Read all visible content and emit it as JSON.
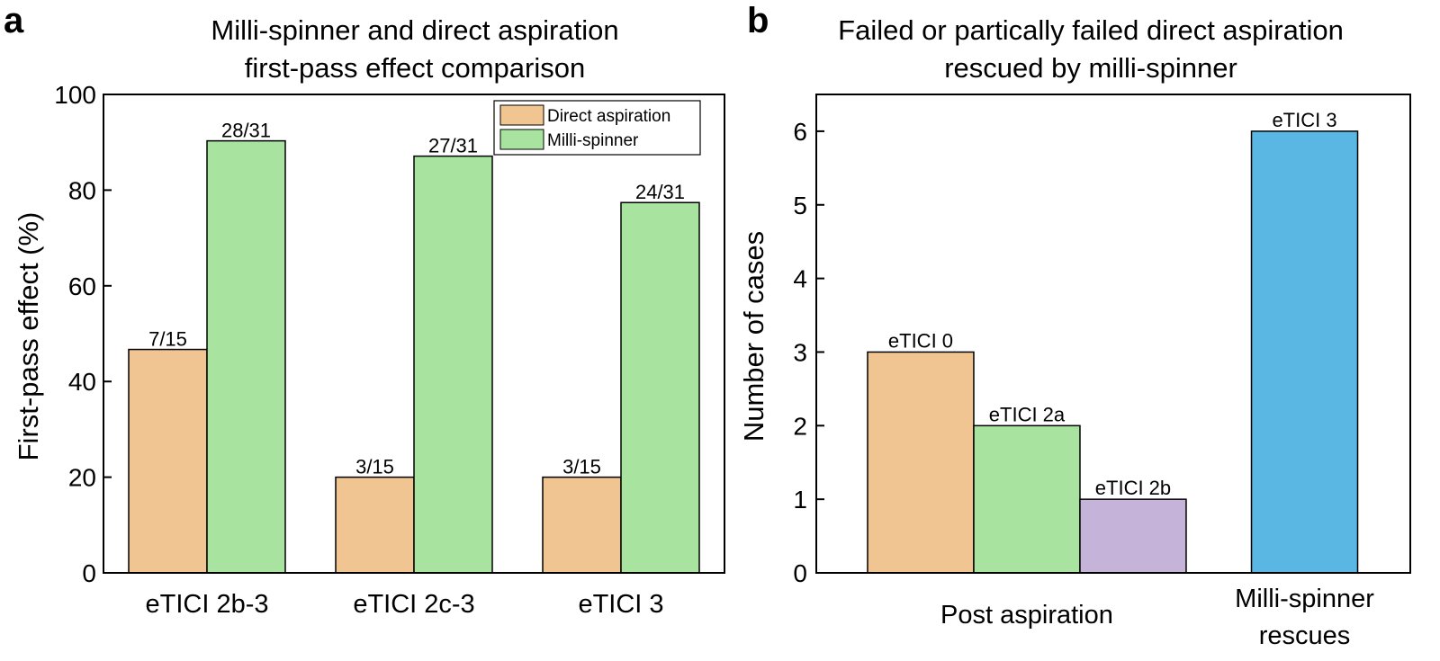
{
  "panels": {
    "a": {
      "letter": "a"
    },
    "b": {
      "letter": "b"
    }
  },
  "chart_data": [
    {
      "type": "bar",
      "title": [
        "Milli-spinner and direct aspiration",
        "first-pass effect comparison"
      ],
      "xlabel": "",
      "ylabel": "First-pass effect (%)",
      "ylim": [
        0,
        100
      ],
      "yticks": [
        "0",
        "20",
        "40",
        "60",
        "80",
        "100"
      ],
      "categories": [
        "eTICI 2b-3",
        "eTICI 2c-3",
        "eTICI 3"
      ],
      "series": [
        {
          "name": "Direct aspiration",
          "color": "#f0c592",
          "values": [
            46.7,
            20,
            20
          ],
          "labels": [
            "7/15",
            "3/15",
            "3/15"
          ]
        },
        {
          "name": "Milli-spinner",
          "color": "#a8e4a0",
          "values": [
            90.3,
            87.1,
            77.4
          ],
          "labels": [
            "28/31",
            "27/31",
            "24/31"
          ]
        }
      ],
      "legend": "top-right",
      "grid": false
    },
    {
      "type": "bar",
      "title": [
        "Failed or partically failed direct aspiration",
        "rescued by milli-spinner"
      ],
      "xlabel": "",
      "ylabel": "Number of cases",
      "ylim": [
        0,
        6.5
      ],
      "yticks": [
        "0",
        "1",
        "2",
        "3",
        "4",
        "5",
        "6"
      ],
      "categories": [
        [
          "Post aspiration"
        ],
        [
          "Milli-spinner",
          "rescues"
        ]
      ],
      "bars": [
        {
          "group": 0,
          "label": "eTICI 0",
          "value": 3,
          "color": "#f0c592"
        },
        {
          "group": 0,
          "label": "eTICI 2a",
          "value": 2,
          "color": "#a8e4a0"
        },
        {
          "group": 0,
          "label": "eTICI 2b",
          "value": 1,
          "color": "#c5b3da"
        },
        {
          "group": 1,
          "label": "eTICI 3",
          "value": 6,
          "color": "#5ab6e3"
        }
      ],
      "grid": false
    }
  ]
}
